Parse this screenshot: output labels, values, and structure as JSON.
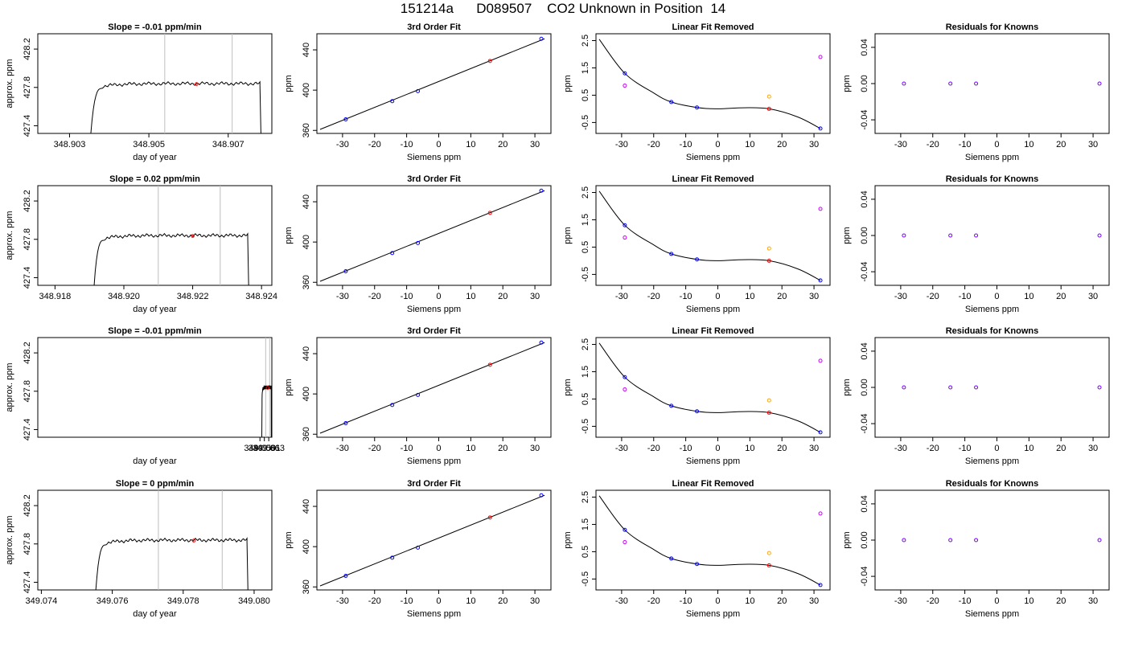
{
  "figure": {
    "title": "151214a      D089507    CO2 Unknown in Position  14"
  },
  "chart_data": [
    {
      "type": "line",
      "title": "Slope =  -0.01  ppm/min",
      "xlabel": "day of year",
      "ylabel": "approx. ppm",
      "xlim": [
        348.9022,
        348.9081
      ],
      "ylim": [
        427.32,
        428.36
      ],
      "xticks": [
        "348.903",
        "348.905",
        "348.907"
      ],
      "yticks": [
        "427.4",
        "427.8",
        "428.2"
      ],
      "vlines": [
        348.9054,
        348.9071
      ],
      "trace": {
        "start": 348.9035,
        "rise_end": 348.9037,
        "end": 348.9078,
        "level": 427.84,
        "color": "#000000"
      },
      "marker": {
        "x": 348.9062,
        "y": 427.835,
        "color": "#ff0000"
      }
    },
    {
      "type": "scatter",
      "title": "3rd Order Fit",
      "xlabel": "Siemens ppm",
      "ylabel": "ppm",
      "xlim": [
        -38,
        35
      ],
      "ylim": [
        357,
        456
      ],
      "xticks": [
        "-30",
        "-20",
        "-10",
        "0",
        "10",
        "20",
        "30"
      ],
      "yticks": [
        "360",
        "400",
        "440"
      ],
      "line": {
        "x": [
          -37,
          33
        ],
        "y": [
          361,
          451
        ]
      },
      "points": [
        {
          "x": -29,
          "y": 371,
          "color": "#0000ff"
        },
        {
          "x": -14.5,
          "y": 389,
          "color": "#0000ff"
        },
        {
          "x": -6.5,
          "y": 399,
          "color": "#0000ff"
        },
        {
          "x": 16,
          "y": 429,
          "color": "#ff0000"
        },
        {
          "x": 32,
          "y": 451,
          "color": "#0000ff"
        }
      ]
    },
    {
      "type": "scatter",
      "title": "Linear Fit Removed",
      "xlabel": "Siemens ppm",
      "ylabel": "ppm",
      "xlim": [
        -38,
        35
      ],
      "ylim": [
        -0.9,
        2.75
      ],
      "xticks": [
        "-30",
        "-20",
        "-10",
        "0",
        "10",
        "20",
        "30"
      ],
      "yticks": [
        "-0.5",
        "0.5",
        "1.5",
        "2.5"
      ],
      "curve": {
        "x": [
          -37,
          -29,
          -20,
          -14.5,
          -6.5,
          0,
          8,
          16,
          25,
          32
        ],
        "y": [
          2.55,
          1.3,
          0.58,
          0.25,
          0.05,
          0,
          0.04,
          0.0,
          -0.3,
          -0.72
        ]
      },
      "points": [
        {
          "x": -29,
          "y": 1.3,
          "color": "#0000ff"
        },
        {
          "x": -29,
          "y": 0.85,
          "color": "#cc00ff"
        },
        {
          "x": -14.5,
          "y": 0.25,
          "color": "#0000ff"
        },
        {
          "x": -6.5,
          "y": 0.05,
          "color": "#0000ff"
        },
        {
          "x": 16,
          "y": 0.0,
          "color": "#ff0000"
        },
        {
          "x": 16,
          "y": 0.45,
          "color": "#ffa500"
        },
        {
          "x": 32,
          "y": 1.9,
          "color": "#cc00ff"
        },
        {
          "x": 32,
          "y": -0.72,
          "color": "#0000ff"
        }
      ]
    },
    {
      "type": "scatter",
      "title": "Residuals for Knowns",
      "xlabel": "Siemens ppm",
      "ylabel": "ppm",
      "xlim": [
        -38,
        35
      ],
      "ylim": [
        -0.055,
        0.055
      ],
      "xticks": [
        "-30",
        "-20",
        "-10",
        "0",
        "10",
        "20",
        "30"
      ],
      "yticks": [
        "-0.04",
        "0.00",
        "0.04"
      ],
      "points": [
        {
          "x": -29,
          "y": 0,
          "color": "#7700ff"
        },
        {
          "x": -14.5,
          "y": 0,
          "color": "#7700ff"
        },
        {
          "x": -6.5,
          "y": 0,
          "color": "#7700ff"
        },
        {
          "x": 32,
          "y": 0,
          "color": "#7700ff"
        }
      ]
    },
    {
      "type": "line",
      "title": "Slope =  0.02  ppm/min",
      "xlabel": "day of year",
      "ylabel": "approx. ppm",
      "xlim": [
        348.9175,
        348.9243
      ],
      "ylim": [
        427.32,
        428.36
      ],
      "xticks": [
        "348.918",
        "348.920",
        "348.922",
        "348.924"
      ],
      "yticks": [
        "427.4",
        "427.8",
        "428.2"
      ],
      "vlines": [
        348.921,
        348.9228
      ],
      "trace": {
        "start": 348.9191,
        "rise_end": 348.9193,
        "end": 348.9236,
        "level": 427.84,
        "color": "#000000"
      },
      "marker": {
        "x": 348.922,
        "y": 427.835,
        "color": "#ff0000"
      }
    },
    {
      "type": "scatter",
      "title": "3rd Order Fit",
      "xlabel": "Siemens ppm",
      "ylabel": "ppm",
      "xlim": [
        -38,
        35
      ],
      "ylim": [
        357,
        456
      ],
      "xticks": [
        "-30",
        "-20",
        "-10",
        "0",
        "10",
        "20",
        "30"
      ],
      "yticks": [
        "360",
        "400",
        "440"
      ],
      "line": {
        "x": [
          -37,
          33
        ],
        "y": [
          361,
          451
        ]
      },
      "points": [
        {
          "x": -29,
          "y": 371,
          "color": "#0000ff"
        },
        {
          "x": -14.5,
          "y": 389,
          "color": "#0000ff"
        },
        {
          "x": -6.5,
          "y": 399,
          "color": "#0000ff"
        },
        {
          "x": 16,
          "y": 429,
          "color": "#ff0000"
        },
        {
          "x": 32,
          "y": 451,
          "color": "#0000ff"
        }
      ]
    },
    {
      "type": "scatter",
      "title": "Linear Fit Removed",
      "xlabel": "Siemens ppm",
      "ylabel": "ppm",
      "xlim": [
        -38,
        35
      ],
      "ylim": [
        -0.9,
        2.75
      ],
      "xticks": [
        "-30",
        "-20",
        "-10",
        "0",
        "10",
        "20",
        "30"
      ],
      "yticks": [
        "-0.5",
        "0.5",
        "1.5",
        "2.5"
      ],
      "curve": {
        "x": [
          -37,
          -29,
          -20,
          -14.5,
          -6.5,
          0,
          8,
          16,
          25,
          32
        ],
        "y": [
          2.55,
          1.3,
          0.58,
          0.25,
          0.05,
          0,
          0.04,
          0.0,
          -0.3,
          -0.72
        ]
      },
      "points": [
        {
          "x": -29,
          "y": 1.3,
          "color": "#0000ff"
        },
        {
          "x": -29,
          "y": 0.85,
          "color": "#cc00ff"
        },
        {
          "x": -14.5,
          "y": 0.25,
          "color": "#0000ff"
        },
        {
          "x": -6.5,
          "y": 0.05,
          "color": "#0000ff"
        },
        {
          "x": 16,
          "y": 0.0,
          "color": "#ff0000"
        },
        {
          "x": 16,
          "y": 0.45,
          "color": "#ffa500"
        },
        {
          "x": 32,
          "y": 1.9,
          "color": "#cc00ff"
        },
        {
          "x": 32,
          "y": -0.72,
          "color": "#0000ff"
        }
      ]
    },
    {
      "type": "scatter",
      "title": "Residuals for Knowns",
      "xlabel": "Siemens ppm",
      "ylabel": "ppm",
      "xlim": [
        -38,
        35
      ],
      "ylim": [
        -0.055,
        0.055
      ],
      "xticks": [
        "-30",
        "-20",
        "-10",
        "0",
        "10",
        "20",
        "30"
      ],
      "yticks": [
        "-0.04",
        "0.00",
        "0.04"
      ],
      "points": [
        {
          "x": -29,
          "y": 0,
          "color": "#7700ff"
        },
        {
          "x": -14.5,
          "y": 0,
          "color": "#7700ff"
        },
        {
          "x": -6.5,
          "y": 0,
          "color": "#7700ff"
        },
        {
          "x": 32,
          "y": 0,
          "color": "#7700ff"
        }
      ]
    },
    {
      "type": "line",
      "title": "Slope =  -0.01  ppm/min",
      "xlabel": "day of year",
      "ylabel": "approx. ppm",
      "xlim": [
        348.9582,
        349.0644
      ],
      "ylim": [
        427.32,
        428.36
      ],
      "xticks": [
        "349.059",
        "349.061",
        "349.063"
      ],
      "yticks": [
        "427.4",
        "427.8",
        "428.2"
      ],
      "vlines": [
        349.0616,
        349.0634
      ],
      "trace": {
        "start": 349.0598,
        "rise_end": 349.06,
        "end": 349.0641,
        "level": 427.84,
        "color": "#000000"
      },
      "marker": {
        "x": 349.0625,
        "y": 427.835,
        "color": "#ff0000"
      }
    },
    {
      "type": "scatter",
      "title": "3rd Order Fit",
      "xlabel": "Siemens ppm",
      "ylabel": "ppm",
      "xlim": [
        -38,
        35
      ],
      "ylim": [
        357,
        456
      ],
      "xticks": [
        "-30",
        "-20",
        "-10",
        "0",
        "10",
        "20",
        "30"
      ],
      "yticks": [
        "360",
        "400",
        "440"
      ],
      "line": {
        "x": [
          -37,
          33
        ],
        "y": [
          361,
          451
        ]
      },
      "points": [
        {
          "x": -29,
          "y": 371,
          "color": "#0000ff"
        },
        {
          "x": -14.5,
          "y": 389,
          "color": "#0000ff"
        },
        {
          "x": -6.5,
          "y": 399,
          "color": "#0000ff"
        },
        {
          "x": 16,
          "y": 429,
          "color": "#ff0000"
        },
        {
          "x": 32,
          "y": 451,
          "color": "#0000ff"
        }
      ]
    },
    {
      "type": "scatter",
      "title": "Linear Fit Removed",
      "xlabel": "Siemens ppm",
      "ylabel": "ppm",
      "xlim": [
        -38,
        35
      ],
      "ylim": [
        -0.9,
        2.75
      ],
      "xticks": [
        "-30",
        "-20",
        "-10",
        "0",
        "10",
        "20",
        "30"
      ],
      "yticks": [
        "-0.5",
        "0.5",
        "1.5",
        "2.5"
      ],
      "curve": {
        "x": [
          -37,
          -29,
          -20,
          -14.5,
          -6.5,
          0,
          8,
          16,
          25,
          32
        ],
        "y": [
          2.55,
          1.3,
          0.58,
          0.25,
          0.05,
          0,
          0.04,
          0.0,
          -0.3,
          -0.72
        ]
      },
      "points": [
        {
          "x": -29,
          "y": 1.3,
          "color": "#0000ff"
        },
        {
          "x": -29,
          "y": 0.85,
          "color": "#cc00ff"
        },
        {
          "x": -14.5,
          "y": 0.25,
          "color": "#0000ff"
        },
        {
          "x": -6.5,
          "y": 0.05,
          "color": "#0000ff"
        },
        {
          "x": 16,
          "y": 0.0,
          "color": "#ff0000"
        },
        {
          "x": 16,
          "y": 0.45,
          "color": "#ffa500"
        },
        {
          "x": 32,
          "y": 1.9,
          "color": "#cc00ff"
        },
        {
          "x": 32,
          "y": -0.72,
          "color": "#0000ff"
        }
      ]
    },
    {
      "type": "scatter",
      "title": "Residuals for Knowns",
      "xlabel": "Siemens ppm",
      "ylabel": "ppm",
      "xlim": [
        -38,
        35
      ],
      "ylim": [
        -0.055,
        0.055
      ],
      "xticks": [
        "-30",
        "-20",
        "-10",
        "0",
        "10",
        "20",
        "30"
      ],
      "yticks": [
        "-0.04",
        "0.00",
        "0.04"
      ],
      "points": [
        {
          "x": -29,
          "y": 0,
          "color": "#7700ff"
        },
        {
          "x": -14.5,
          "y": 0,
          "color": "#7700ff"
        },
        {
          "x": -6.5,
          "y": 0,
          "color": "#7700ff"
        },
        {
          "x": 32,
          "y": 0,
          "color": "#7700ff"
        }
      ]
    },
    {
      "type": "line",
      "title": "Slope =  0  ppm/min",
      "xlabel": "day of year",
      "ylabel": "approx. ppm",
      "xlim": [
        349.0739,
        349.0805
      ],
      "ylim": [
        427.32,
        428.36
      ],
      "xticks": [
        "349.074",
        "349.076",
        "349.078",
        "349.080"
      ],
      "yticks": [
        "427.4",
        "427.8",
        "428.2"
      ],
      "vlines": [
        349.0773,
        349.0791
      ],
      "trace": {
        "start": 349.0755,
        "rise_end": 349.0757,
        "end": 349.0798,
        "level": 427.84,
        "color": "#000000"
      },
      "marker": {
        "x": 349.0783,
        "y": 427.835,
        "color": "#ff0000"
      }
    },
    {
      "type": "scatter",
      "title": "3rd Order Fit",
      "xlabel": "Siemens ppm",
      "ylabel": "ppm",
      "xlim": [
        -38,
        35
      ],
      "ylim": [
        357,
        456
      ],
      "xticks": [
        "-30",
        "-20",
        "-10",
        "0",
        "10",
        "20",
        "30"
      ],
      "yticks": [
        "360",
        "400",
        "440"
      ],
      "line": {
        "x": [
          -37,
          33
        ],
        "y": [
          361,
          451
        ]
      },
      "points": [
        {
          "x": -29,
          "y": 371,
          "color": "#0000ff"
        },
        {
          "x": -14.5,
          "y": 389,
          "color": "#0000ff"
        },
        {
          "x": -6.5,
          "y": 399,
          "color": "#0000ff"
        },
        {
          "x": 16,
          "y": 429,
          "color": "#ff0000"
        },
        {
          "x": 32,
          "y": 451,
          "color": "#0000ff"
        }
      ]
    },
    {
      "type": "scatter",
      "title": "Linear Fit Removed",
      "xlabel": "Siemens ppm",
      "ylabel": "ppm",
      "xlim": [
        -38,
        35
      ],
      "ylim": [
        -0.9,
        2.75
      ],
      "xticks": [
        "-30",
        "-20",
        "-10",
        "0",
        "10",
        "20",
        "30"
      ],
      "yticks": [
        "-0.5",
        "0.5",
        "1.5",
        "2.5"
      ],
      "curve": {
        "x": [
          -37,
          -29,
          -20,
          -14.5,
          -6.5,
          0,
          8,
          16,
          25,
          32
        ],
        "y": [
          2.55,
          1.3,
          0.58,
          0.25,
          0.05,
          0,
          0.04,
          0.0,
          -0.3,
          -0.72
        ]
      },
      "points": [
        {
          "x": -29,
          "y": 1.3,
          "color": "#0000ff"
        },
        {
          "x": -29,
          "y": 0.85,
          "color": "#cc00ff"
        },
        {
          "x": -14.5,
          "y": 0.25,
          "color": "#0000ff"
        },
        {
          "x": -6.5,
          "y": 0.05,
          "color": "#0000ff"
        },
        {
          "x": 16,
          "y": 0.0,
          "color": "#ff0000"
        },
        {
          "x": 16,
          "y": 0.45,
          "color": "#ffa500"
        },
        {
          "x": 32,
          "y": 1.9,
          "color": "#cc00ff"
        },
        {
          "x": 32,
          "y": -0.72,
          "color": "#0000ff"
        }
      ]
    },
    {
      "type": "scatter",
      "title": "Residuals for Knowns",
      "xlabel": "Siemens ppm",
      "ylabel": "ppm",
      "xlim": [
        -38,
        35
      ],
      "ylim": [
        -0.055,
        0.055
      ],
      "xticks": [
        "-30",
        "-20",
        "-10",
        "0",
        "10",
        "20",
        "30"
      ],
      "yticks": [
        "-0.04",
        "0.00",
        "0.04"
      ],
      "points": [
        {
          "x": -29,
          "y": 0,
          "color": "#7700ff"
        },
        {
          "x": -14.5,
          "y": 0,
          "color": "#7700ff"
        },
        {
          "x": -6.5,
          "y": 0,
          "color": "#7700ff"
        },
        {
          "x": 32,
          "y": 0,
          "color": "#7700ff"
        }
      ]
    }
  ]
}
